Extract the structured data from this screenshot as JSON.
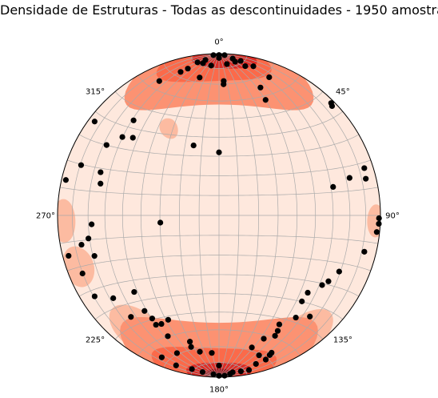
{
  "chart_data": {
    "type": "scatter",
    "subtype": "stereonet-density",
    "title": "Densidade de Estruturas - Todas as descontinuidades - 1950 amostras",
    "projection": "equal-area lower hemisphere",
    "grid": true,
    "grid_interval_deg": 10,
    "azimuth_labels": [
      "0°",
      "45°",
      "90°",
      "135°",
      "180°",
      "225°",
      "270°",
      "315°"
    ],
    "colormap": "Reds",
    "colors": {
      "background": "#fee8dd",
      "density_low": "#fcbba1",
      "density_mid": "#fc9272",
      "density_high": "#fb6a4a",
      "density_max": "#de2d26",
      "density_peak": "#a50f15",
      "points": "#000000",
      "grid": "#aaaaaa"
    },
    "density_zones": [
      {
        "level": 2,
        "trend": 0,
        "plunge": 12,
        "az_halfwidth": 40,
        "plunge_spread": 20
      },
      {
        "level": 3,
        "trend": 358,
        "plunge": 6,
        "az_halfwidth": 22,
        "plunge_spread": 12
      },
      {
        "level": 4,
        "trend": 2,
        "plunge": 3,
        "az_halfwidth": 12,
        "plunge_spread": 7
      },
      {
        "level": 2,
        "trend": 180,
        "plunge": 12,
        "az_halfwidth": 42,
        "plunge_spread": 22
      },
      {
        "level": 3,
        "trend": 182,
        "plunge": 6,
        "az_halfwidth": 24,
        "plunge_spread": 13
      },
      {
        "level": 4,
        "trend": 180,
        "plunge": 3,
        "az_halfwidth": 12,
        "plunge_spread": 7
      },
      {
        "level": 5,
        "trend": 180,
        "plunge": 2,
        "az_halfwidth": 5,
        "plunge_spread": 4
      },
      {
        "level": 1,
        "trend": 268,
        "plunge": 4,
        "az_halfwidth": 8,
        "plunge_spread": 8
      },
      {
        "level": 1,
        "trend": 250,
        "plunge": 8,
        "az_halfwidth": 8,
        "plunge_spread": 10
      },
      {
        "level": 1,
        "trend": 215,
        "plunge": 14,
        "az_halfwidth": 14,
        "plunge_spread": 12
      },
      {
        "level": 1,
        "trend": 145,
        "plunge": 10,
        "az_halfwidth": 14,
        "plunge_spread": 12
      },
      {
        "level": 1,
        "trend": 92,
        "plunge": 3,
        "az_halfwidth": 6,
        "plunge_spread": 6
      },
      {
        "level": 1,
        "trend": 330,
        "plunge": 38,
        "az_halfwidth": 5,
        "plunge_spread": 6
      }
    ],
    "poles": [
      {
        "trend": 0,
        "plunge": 1
      },
      {
        "trend": 2,
        "plunge": 1
      },
      {
        "trend": 358,
        "plunge": 1
      },
      {
        "trend": 0,
        "plunge": 3
      },
      {
        "trend": 355,
        "plunge": 4
      },
      {
        "trend": 5,
        "plunge": 3
      },
      {
        "trend": 6,
        "plunge": 5
      },
      {
        "trend": 354,
        "plunge": 6
      },
      {
        "trend": 8,
        "plunge": 4
      },
      {
        "trend": 3,
        "plunge": 7
      },
      {
        "trend": 352,
        "plunge": 5
      },
      {
        "trend": 357,
        "plunge": 8
      },
      {
        "trend": 10,
        "plunge": 7
      },
      {
        "trend": 13,
        "plunge": 6
      },
      {
        "trend": 348,
        "plunge": 8
      },
      {
        "trend": 345,
        "plunge": 9
      },
      {
        "trend": 20,
        "plunge": 10
      },
      {
        "trend": 352,
        "plunge": 15
      },
      {
        "trend": 2,
        "plunge": 18
      },
      {
        "trend": 2,
        "plunge": 20
      },
      {
        "trend": 18,
        "plunge": 18
      },
      {
        "trend": 22,
        "plunge": 24
      },
      {
        "trend": 336,
        "plunge": 10
      },
      {
        "trend": 318,
        "plunge": 22
      },
      {
        "trend": 309,
        "plunge": 24
      },
      {
        "trend": 312,
        "plunge": 29
      },
      {
        "trend": 340,
        "plunge": 52
      },
      {
        "trend": 0,
        "plunge": 58
      },
      {
        "trend": 307,
        "plunge": 4
      },
      {
        "trend": 302,
        "plunge": 19
      },
      {
        "trend": 290,
        "plunge": 10
      },
      {
        "trend": 283,
        "plunge": 3
      },
      {
        "trend": 290,
        "plunge": 23
      },
      {
        "trend": 285,
        "plunge": 25
      },
      {
        "trend": 266,
        "plunge": 22
      },
      {
        "trend": 260,
        "plunge": 19
      },
      {
        "trend": 258,
        "plunge": 14
      },
      {
        "trend": 252,
        "plunge": 20
      },
      {
        "trend": 263,
        "plunge": 60
      },
      {
        "trend": 255,
        "plunge": 4
      },
      {
        "trend": 247,
        "plunge": 9
      },
      {
        "trend": 237,
        "plunge": 9
      },
      {
        "trend": 232,
        "plunge": 18
      },
      {
        "trend": 228,
        "plunge": 30
      },
      {
        "trend": 221,
        "plunge": 18
      },
      {
        "trend": 218,
        "plunge": 26
      },
      {
        "trend": 213,
        "plunge": 25
      },
      {
        "trend": 210,
        "plunge": 23
      },
      {
        "trend": 208,
        "plunge": 25
      },
      {
        "trend": 206,
        "plunge": 29
      },
      {
        "trend": 203,
        "plunge": 20
      },
      {
        "trend": 197,
        "plunge": 12
      },
      {
        "trend": 193,
        "plunge": 21
      },
      {
        "trend": 192,
        "plunge": 18
      },
      {
        "trend": 188,
        "plunge": 16
      },
      {
        "trend": 183,
        "plunge": 16
      },
      {
        "trend": 202,
        "plunge": 6
      },
      {
        "trend": 196,
        "plunge": 4
      },
      {
        "trend": 190,
        "plunge": 4
      },
      {
        "trend": 186,
        "plunge": 3
      },
      {
        "trend": 182,
        "plunge": 2
      },
      {
        "trend": 180,
        "plunge": 1
      },
      {
        "trend": 178,
        "plunge": 1
      },
      {
        "trend": 176,
        "plunge": 2
      },
      {
        "trend": 175,
        "plunge": 3
      },
      {
        "trend": 172,
        "plunge": 3
      },
      {
        "trend": 169,
        "plunge": 3
      },
      {
        "trend": 180,
        "plunge": 8
      },
      {
        "trend": 166,
        "plunge": 6
      },
      {
        "trend": 162,
        "plunge": 7
      },
      {
        "trend": 160,
        "plunge": 9
      },
      {
        "trend": 164,
        "plunge": 11
      },
      {
        "trend": 159,
        "plunge": 10
      },
      {
        "trend": 166,
        "plunge": 17
      },
      {
        "trend": 160,
        "plunge": 20
      },
      {
        "trend": 155,
        "plunge": 19
      },
      {
        "trend": 153,
        "plunge": 21
      },
      {
        "trend": 151,
        "plunge": 24
      },
      {
        "trend": 143,
        "plunge": 22
      },
      {
        "trend": 138,
        "plunge": 17
      },
      {
        "trend": 136,
        "plunge": 27
      },
      {
        "trend": 131,
        "plunge": 28
      },
      {
        "trend": 124,
        "plunge": 24
      },
      {
        "trend": 121,
        "plunge": 22
      },
      {
        "trend": 115,
        "plunge": 19
      },
      {
        "trend": 104,
        "plunge": 8
      },
      {
        "trend": 96,
        "plunge": 2
      },
      {
        "trend": 93,
        "plunge": 1
      },
      {
        "trend": 91,
        "plunge": 1
      },
      {
        "trend": 76,
        "plunge": 7
      },
      {
        "trend": 72,
        "plunge": 6
      },
      {
        "trend": 74,
        "plunge": 17
      },
      {
        "trend": 76,
        "plunge": 28
      },
      {
        "trend": 45,
        "plunge": 2
      },
      {
        "trend": 46,
        "plunge": 3
      }
    ]
  }
}
